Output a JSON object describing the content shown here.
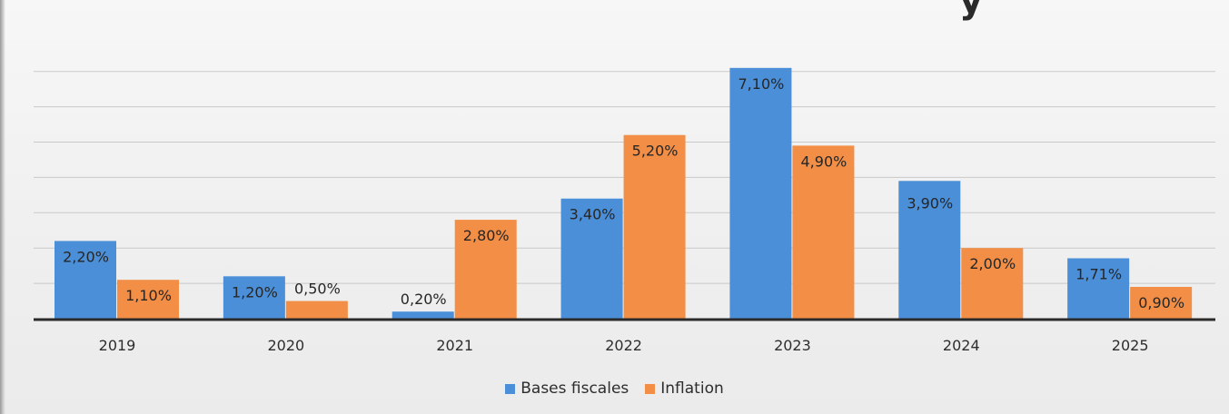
{
  "title_fragment": "y",
  "chart_data": {
    "type": "bar",
    "categories": [
      "2019",
      "2020",
      "2021",
      "2022",
      "2023",
      "2024",
      "2025"
    ],
    "series": [
      {
        "name": "Bases fiscales",
        "color": "#4a8fd8",
        "values": [
          2.2,
          1.2,
          0.2,
          3.4,
          7.1,
          3.9,
          1.71
        ],
        "labels": [
          "2,20%",
          "1,20%",
          "0,20%",
          "3,40%",
          "7,10%",
          "3,90%",
          "1,71%"
        ]
      },
      {
        "name": "Inflation",
        "color": "#f28e45",
        "values": [
          1.1,
          0.5,
          2.8,
          5.2,
          4.9,
          2.0,
          0.9
        ],
        "labels": [
          "1,10%",
          "0,50%",
          "2,80%",
          "5,20%",
          "4,90%",
          "2,00%",
          "0,90%"
        ]
      }
    ],
    "ylim": [
      0,
      8
    ],
    "grid": true,
    "legend_position": "bottom"
  }
}
